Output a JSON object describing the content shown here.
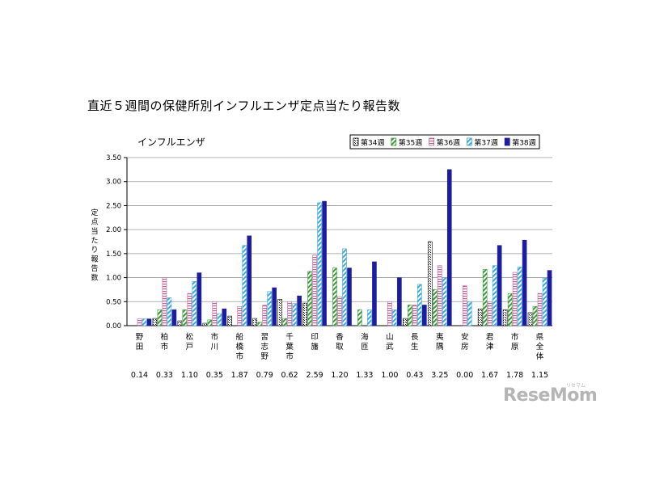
{
  "page": {
    "title": "直近５週間の保健所別インフルエンザ定点当たり報告数",
    "watermark": "ReseMom",
    "watermark_kana": "リセマム"
  },
  "chart_data": {
    "type": "bar",
    "title": "インフルエンザ",
    "ylabel": "定点当たり報告数",
    "xlabel": "",
    "ylim": [
      0,
      3.5
    ],
    "yticks": [
      "0.00",
      "0.50",
      "1.00",
      "1.50",
      "2.00",
      "2.50",
      "3.00",
      "3.50"
    ],
    "grid": true,
    "legend_position": "top-right",
    "categories": [
      "野田",
      "柏市",
      "松戸",
      "市川",
      "船橋市",
      "習志野",
      "千葉市",
      "印旛",
      "香取",
      "海匝",
      "山武",
      "長生",
      "夷隅",
      "安房",
      "君津",
      "市原",
      "県全体"
    ],
    "series": [
      {
        "name": "第34週",
        "pattern": "dots",
        "color": "#000000",
        "values": [
          0.0,
          0.15,
          0.1,
          0.05,
          0.2,
          0.15,
          0.55,
          0.47,
          0.0,
          0.0,
          0.0,
          0.15,
          1.75,
          0.0,
          0.35,
          0.33,
          0.27
        ]
      },
      {
        "name": "第35週",
        "pattern": "green-diagonal",
        "color": "#3a9a3a",
        "values": [
          0.0,
          0.33,
          0.33,
          0.12,
          0.0,
          0.07,
          0.15,
          1.13,
          1.2,
          0.33,
          0.0,
          0.43,
          0.75,
          0.0,
          1.17,
          0.67,
          0.4
        ]
      },
      {
        "name": "第36週",
        "pattern": "horizontal-stripes",
        "color": "#c0609a",
        "values": [
          0.14,
          1.0,
          0.67,
          0.5,
          0.4,
          0.43,
          0.5,
          1.47,
          0.6,
          0.0,
          0.5,
          0.43,
          1.25,
          0.83,
          0.5,
          1.11,
          0.67
        ]
      },
      {
        "name": "第37週",
        "pattern": "cyan-diagonal",
        "color": "#3aaad8",
        "values": [
          0.14,
          0.58,
          0.92,
          0.25,
          1.67,
          0.71,
          0.46,
          2.56,
          1.6,
          0.33,
          0.33,
          0.86,
          1.0,
          0.5,
          1.25,
          1.22,
          0.99
        ]
      },
      {
        "name": "第38週",
        "pattern": "solid",
        "color": "#1c1c9e",
        "values": [
          0.14,
          0.33,
          1.1,
          0.35,
          1.87,
          0.79,
          0.62,
          2.59,
          1.2,
          1.33,
          1.0,
          0.43,
          3.25,
          0.0,
          1.67,
          1.78,
          1.15
        ]
      }
    ],
    "bottom_values": [
      "0.14",
      "0.33",
      "1.10",
      "0.35",
      "1.87",
      "0.79",
      "0.62",
      "2.59",
      "1.20",
      "1.33",
      "1.00",
      "0.43",
      "3.25",
      "0.00",
      "1.67",
      "1.78",
      "1.15"
    ]
  }
}
